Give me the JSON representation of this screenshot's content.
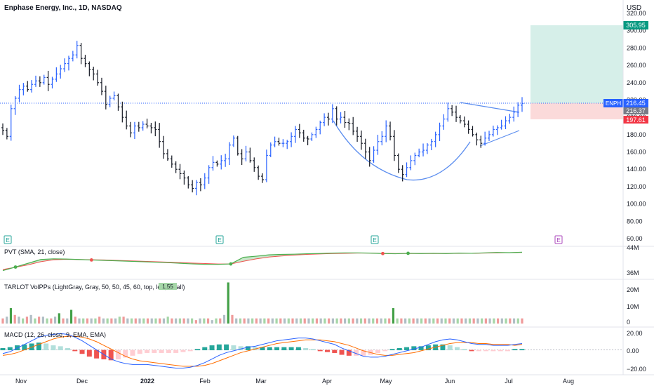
{
  "header": {
    "title": "Enphase Energy, Inc., 1D, NASDAQ",
    "currency": "USD"
  },
  "colors": {
    "up": "#2962ff",
    "down": "#131722",
    "green": "#4caf50",
    "red": "#ef5350",
    "cup": "#5b8def",
    "target_zone": "#d6efe9",
    "stop_zone": "#fbdada",
    "target_badge": "#089981",
    "stop_badge": "#f23645",
    "last_badge": "#2962ff",
    "prev_badge": "#787b86"
  },
  "price_pane": {
    "y_ticks": [
      {
        "v": 320,
        "t": "320.00"
      },
      {
        "v": 300,
        "t": "300.00"
      },
      {
        "v": 280,
        "t": "280.00"
      },
      {
        "v": 260,
        "t": "260.00"
      },
      {
        "v": 240,
        "t": "240.00"
      },
      {
        "v": 220,
        "t": "220.00"
      },
      {
        "v": 200,
        "t": "200.00"
      },
      {
        "v": 180,
        "t": "180.00"
      },
      {
        "v": 160,
        "t": "160.00"
      },
      {
        "v": 140,
        "t": "140.00"
      },
      {
        "v": 120,
        "t": "120.00"
      },
      {
        "v": 100,
        "t": "100.00"
      },
      {
        "v": 80,
        "t": "80.00"
      },
      {
        "v": 60,
        "t": "60.00"
      }
    ],
    "symbol_tag": "ENPH",
    "last_price": "216.45",
    "prev_close": "216.37",
    "target_price": "305.95",
    "stop_price": "197.61",
    "earnings_marker": "E"
  },
  "x_axis": {
    "labels": [
      "Nov",
      "Dec",
      "2022",
      "Feb",
      "Mar",
      "Apr",
      "May",
      "Jun",
      "Jul",
      "Aug"
    ]
  },
  "indicators": {
    "pvt": {
      "label": "PVT (SMA, 21, close)",
      "ticks": [
        "44M",
        "36M"
      ]
    },
    "volume": {
      "label": "TARLOT VolPPs (LightGray, Gray, 50, 50, 45, 60, top, left, small)",
      "badge": "1.55",
      "ticks": [
        "20M",
        "10M",
        "0"
      ]
    },
    "macd": {
      "label": "MACD (12, 26, close, 9, EMA, EMA)",
      "ticks": [
        "20.00",
        "0.00",
        "−20.00"
      ]
    }
  },
  "chart_data": [
    {
      "type": "ohlc",
      "title": "Enphase Energy, Inc., 1D, NASDAQ",
      "ylim": [
        50,
        330
      ],
      "series": [
        {
          "name": "ENPH",
          "values": [
            185,
            178,
            210,
            222,
            232,
            236,
            232,
            238,
            242,
            240,
            246,
            238,
            244,
            250,
            256,
            262,
            268,
            272,
            283,
            268,
            262,
            255,
            250,
            240,
            230,
            215,
            222,
            225,
            212,
            200,
            190,
            182,
            190,
            188,
            192,
            190,
            188,
            186,
            172,
            158,
            152,
            146,
            140,
            135,
            130,
            122,
            118,
            125,
            122,
            130,
            142,
            148,
            146,
            150,
            152,
            168,
            176,
            158,
            152,
            160,
            150,
            142,
            132,
            128,
            156,
            168,
            172,
            170,
            170,
            172,
            178,
            186,
            182,
            176,
            175,
            180,
            186,
            194,
            200,
            198,
            210,
            198,
            200,
            194,
            193,
            184,
            178,
            170,
            160,
            150,
            162,
            172,
            178,
            190,
            178,
            156,
            140,
            134,
            142,
            150,
            156,
            160,
            162,
            168,
            172,
            180,
            190,
            198,
            210,
            206,
            200,
            196,
            192,
            186,
            180,
            174,
            170,
            176,
            180,
            186,
            188,
            190,
            196,
            200,
            206,
            214,
            216
          ]
        }
      ]
    },
    {
      "type": "area",
      "title": "PVT (SMA, 21, close)",
      "ylim": [
        33,
        46
      ],
      "series": [
        {
          "name": "PVT",
          "values": [
            36.0,
            37.6,
            39.3,
            41.0,
            41.3,
            41.2,
            41.0,
            40.8,
            40.6,
            40.4,
            40.2,
            40.0,
            39.8,
            39.6,
            39.3,
            39.0,
            38.8,
            38.8,
            39.0,
            42.0,
            42.5,
            43.1,
            43.3,
            43.4,
            43.6,
            43.7,
            43.9,
            44.0,
            44.0,
            43.9,
            43.7,
            43.6,
            43.8,
            43.7,
            43.8,
            43.7,
            43.9,
            43.8,
            44.0,
            44.2,
            44.1,
            44.3
          ]
        },
        {
          "name": "PVT SMA",
          "values": [
            36.5,
            37.5,
            38.6,
            40.0,
            40.9,
            41.1,
            41.0,
            40.9,
            40.8,
            40.6,
            40.4,
            40.2,
            40.0,
            39.8,
            39.6,
            39.4,
            39.2,
            39.0,
            39.0,
            40.2,
            41.3,
            42.1,
            42.6,
            43.0,
            43.3,
            43.5,
            43.7,
            43.8,
            43.9,
            43.9,
            43.8,
            43.7,
            43.7,
            43.7,
            43.7,
            43.7,
            43.8,
            43.8,
            43.9,
            44.0,
            44.1,
            44.2
          ]
        }
      ]
    },
    {
      "type": "bar",
      "title": "TARLOT VolPPs (LightGray, Gray, 50, 50, 45, 60, top, left, small)",
      "ylim": [
        0,
        25
      ],
      "series": [
        {
          "name": "Volume",
          "values": [
            3,
            4,
            9,
            5,
            4,
            3,
            4,
            5,
            3,
            4,
            4,
            3,
            3,
            4,
            6,
            3,
            3,
            8,
            4,
            3,
            3,
            3,
            3,
            3,
            4,
            3,
            3,
            3,
            3,
            4,
            4,
            3,
            3,
            3,
            3,
            3,
            3,
            3,
            3,
            3,
            3,
            4,
            3,
            3,
            3,
            3,
            3,
            3,
            2,
            3,
            3,
            3,
            2,
            3,
            3,
            5,
            24,
            5,
            3,
            3,
            3,
            3,
            3,
            3,
            3,
            3,
            3,
            3,
            3,
            3,
            3,
            3,
            3,
            3,
            3,
            3,
            3,
            3,
            3,
            3,
            3,
            3,
            3,
            3,
            3,
            3,
            3,
            3,
            3,
            3,
            3,
            3,
            3,
            3,
            3,
            3,
            3,
            9,
            3,
            3,
            3,
            3,
            3,
            3,
            3,
            3,
            3,
            3,
            3,
            3,
            3,
            3,
            3,
            3,
            3,
            3,
            3,
            3,
            3,
            3,
            3,
            3,
            3,
            3,
            3,
            3,
            3,
            3,
            3,
            3
          ]
        }
      ]
    },
    {
      "type": "line",
      "title": "MACD (12, 26, close, 9, EMA, EMA)",
      "ylim": [
        -25,
        22
      ],
      "series": [
        {
          "name": "MACD",
          "values": [
            -4,
            -2,
            2,
            6,
            10,
            14,
            16,
            17,
            18,
            17,
            14,
            10,
            5,
            0,
            -5,
            -10,
            -13,
            -15,
            -16,
            -16,
            -16,
            -17,
            -18,
            -19,
            -20,
            -20,
            -19,
            -17,
            -14,
            -10,
            -6,
            -3,
            -1,
            1,
            3,
            4,
            6,
            8,
            10,
            11,
            12,
            13,
            13,
            12,
            10,
            8,
            6,
            2,
            -1,
            -4,
            -7,
            -8,
            -8,
            -7,
            -5,
            -3,
            -1,
            1,
            3,
            6,
            9,
            11,
            12,
            11,
            9,
            7,
            6,
            6,
            5,
            5,
            5,
            6,
            7
          ]
        },
        {
          "name": "Signal",
          "values": [
            -6,
            -5,
            -3,
            0,
            3,
            6,
            9,
            12,
            14,
            15,
            15,
            14,
            12,
            9,
            5,
            1,
            -3,
            -7,
            -10,
            -12,
            -13,
            -14,
            -15,
            -16,
            -17,
            -18,
            -18,
            -18,
            -17,
            -15,
            -12,
            -9,
            -6,
            -3,
            -1,
            1,
            3,
            5,
            7,
            8,
            9,
            10,
            11,
            11,
            11,
            10,
            9,
            7,
            5,
            2,
            -1,
            -3,
            -5,
            -6,
            -6,
            -5,
            -4,
            -3,
            -1,
            1,
            3,
            5,
            7,
            8,
            8,
            8,
            7,
            7,
            6,
            6,
            6,
            5,
            6
          ]
        }
      ]
    }
  ]
}
